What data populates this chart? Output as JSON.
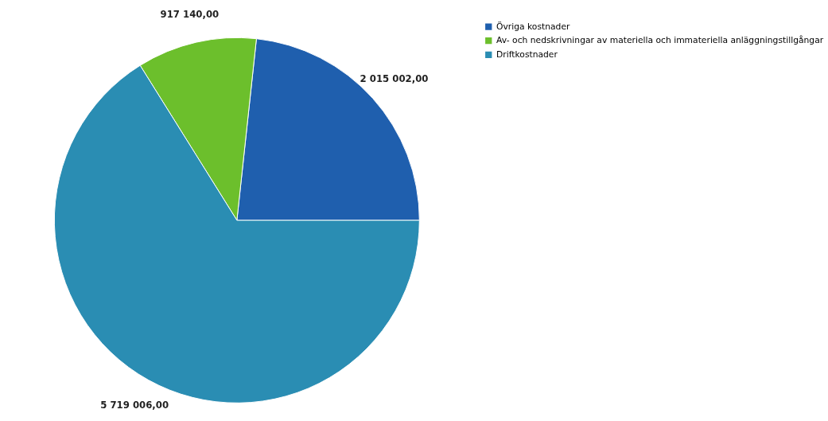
{
  "chart_data": {
    "type": "pie",
    "categories": [
      "Övriga kostnader",
      "Av- och nedskrivningar av materiella och immateriella anläggningstillgångar",
      "Driftkostnader"
    ],
    "values": [
      2015002.0,
      917140.0,
      5719006.0
    ],
    "colors": [
      "#1f5fae",
      "#6cbf2c",
      "#2a8db3"
    ],
    "value_labels": [
      "2 015 002,00",
      "917 140,00",
      "5 719 006,00"
    ],
    "legend": "right"
  }
}
